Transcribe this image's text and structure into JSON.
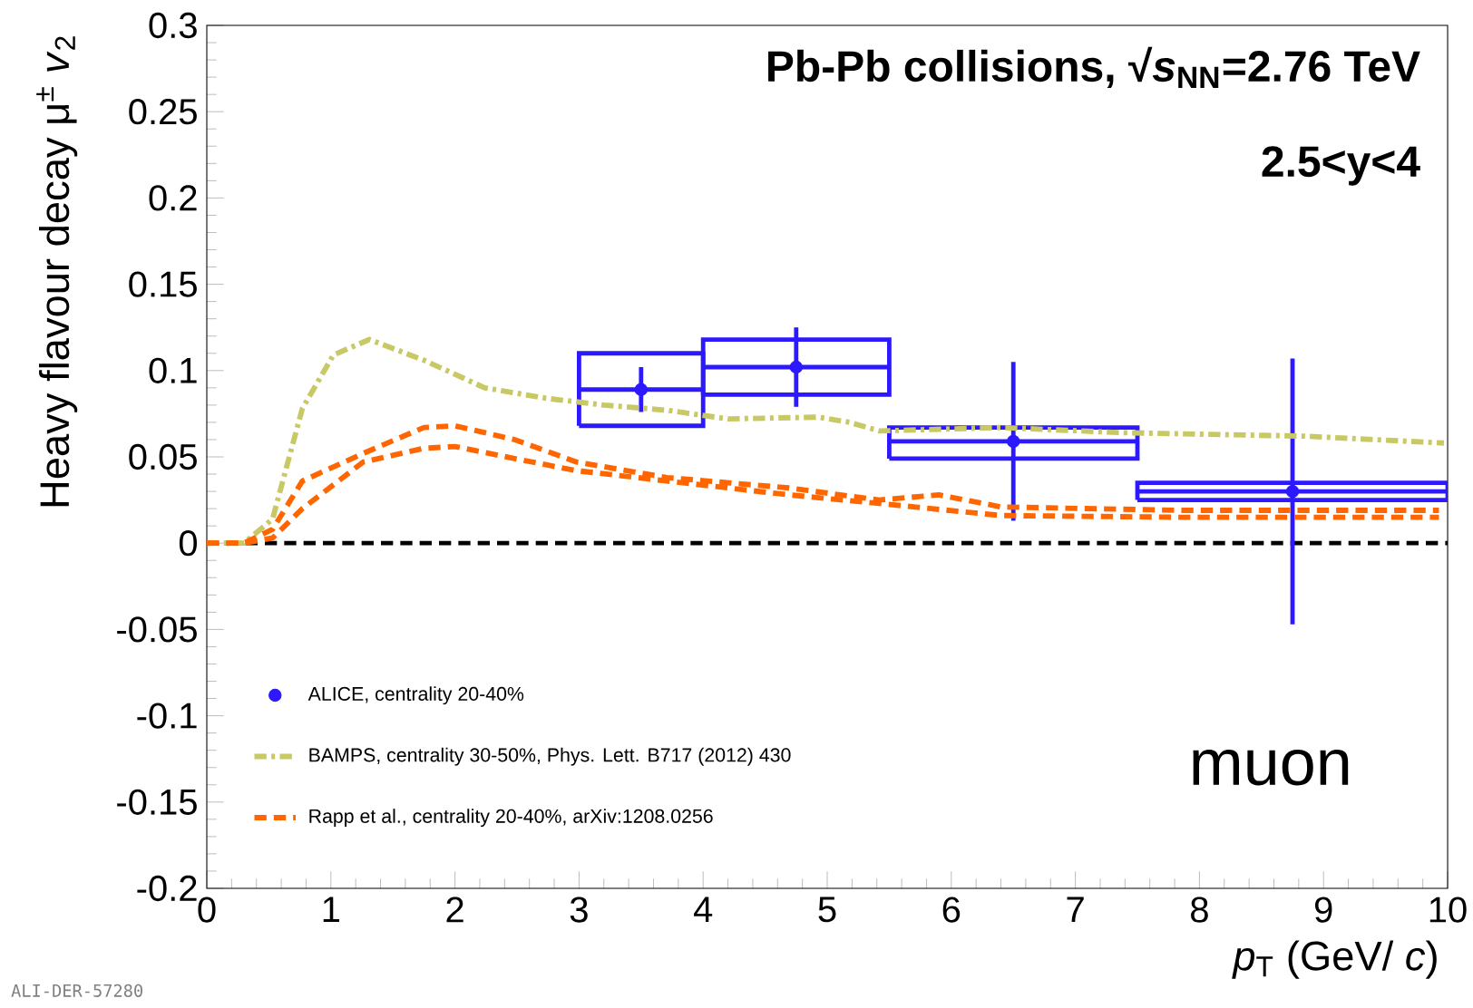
{
  "chart_data": {
    "type": "scatter",
    "title": "Pb-Pb collisions, √*s*$_{NN}$=2.76 TeV",
    "subtitle": "2.5<y<4",
    "xlabel": "*p*$_{T}$ (GeV/ *c*)",
    "ylabel": "Heavy flavour decay μ$^{±}$ *v*$_{2}$",
    "xlim": [
      0,
      10
    ],
    "ylim": [
      -0.2,
      0.3
    ],
    "xticks": [
      0,
      1,
      2,
      3,
      4,
      5,
      6,
      7,
      8,
      9,
      10
    ],
    "yticks": [
      -0.2,
      -0.15,
      -0.1,
      -0.05,
      0,
      0.05,
      0.1,
      0.15,
      0.2,
      0.25,
      0.3
    ],
    "legend": "bottom left",
    "grid": false,
    "ref_lines": [
      {
        "axis": "y",
        "value": 0,
        "color": "#000000",
        "line_style": "dashed"
      }
    ],
    "annotations": [
      "muon",
      "ALI-DER-57280"
    ],
    "series": [
      {
        "name": "ALICE, centrality 20-40%",
        "color": "#2d19ff",
        "marker": "circle",
        "x": [
          3.5,
          4.75,
          6.5,
          8.75
        ],
        "values": [
          0.089,
          0.102,
          0.059,
          0.03
        ],
        "errors": [
          0.013,
          0.023,
          0.046,
          0.077
        ],
        "xerrors": [
          0.5,
          0.75,
          1,
          1.25
        ]
      },
      {
        "type": "bar",
        "color": "#2d19ff",
        "x": [
          3.5,
          4.75,
          6.5,
          8.75
        ],
        "base": [
          0.068,
          0.086,
          0.049,
          0.025
        ],
        "values": [
          0.042,
          0.032,
          0.018,
          0.01
        ]
      },
      {
        "name": "BAMPS, centrality 30-50%, Phys. Lett. B717 (2012) 430",
        "type": "line",
        "color": "#c8c864",
        "marker": "none",
        "line_style": "dashdot",
        "x": [
          0,
          0.3,
          0.53,
          0.77,
          1.02,
          1.31,
          1.75,
          2.24,
          2.73,
          3.2,
          3.71,
          4.2,
          4.93,
          5.18,
          5.42,
          6.4,
          7.38,
          8.85,
          9.97
        ],
        "values": [
          0,
          0,
          0.014,
          0.078,
          0.109,
          0.118,
          0.106,
          0.09,
          0.084,
          0.08,
          0.077,
          0.072,
          0.073,
          0.07,
          0.065,
          0.067,
          0.064,
          0.062,
          0.058
        ]
      },
      {
        "name": "Rapp et al., centrality 20-40%, arXiv:1208.0256",
        "type": "line",
        "color": "#ff6600",
        "marker": "none",
        "line_style": "dashed",
        "x": [
          0,
          0.3,
          0.53,
          0.77,
          1.26,
          1.75,
          2.0,
          2.48,
          2.98,
          3.71,
          4.69,
          5.42,
          5.9,
          6.4,
          7.87,
          9.93
        ],
        "values": [
          0,
          0,
          0.008,
          0.036,
          0.052,
          0.067,
          0.068,
          0.06,
          0.047,
          0.038,
          0.032,
          0.025,
          0.028,
          0.021,
          0.019,
          0.019
        ]
      },
      {
        "type": "line",
        "color": "#ff6600",
        "marker": "none",
        "line_style": "dashed",
        "x": [
          0,
          0.3,
          0.53,
          0.77,
          1.26,
          1.75,
          2.0,
          2.48,
          2.98,
          3.71,
          4.69,
          5.42,
          6.4,
          7.87,
          9.93
        ],
        "values": [
          0,
          0,
          0.003,
          0.02,
          0.047,
          0.055,
          0.056,
          0.049,
          0.042,
          0.036,
          0.028,
          0.023,
          0.016,
          0.015,
          0.015
        ]
      }
    ]
  }
}
